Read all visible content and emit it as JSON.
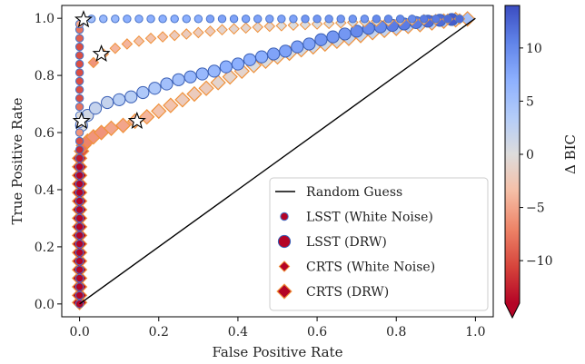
{
  "chart_data": {
    "type": "scatter",
    "title": "",
    "xlabel": "False Positive Rate",
    "ylabel": "True Positive Rate",
    "xlim": [
      -0.045,
      1.045
    ],
    "ylim": [
      -0.045,
      1.045
    ],
    "xticks": [
      0.0,
      0.2,
      0.4,
      0.6,
      0.8,
      1.0
    ],
    "yticks": [
      0.0,
      0.2,
      0.4,
      0.6,
      0.8,
      1.0
    ],
    "xtick_labels": [
      "0.0",
      "0.2",
      "0.4",
      "0.6",
      "0.8",
      "1.0"
    ],
    "ytick_labels": [
      "0.0",
      "0.2",
      "0.4",
      "0.6",
      "0.8",
      "1.0"
    ],
    "grid": false,
    "legend_position": "lower-right",
    "colorbar": {
      "label": "Δ BIC",
      "range": [
        -14,
        14
      ],
      "ticks": [
        -10,
        -5,
        0,
        5,
        10
      ],
      "tick_labels": [
        "−10",
        "−5",
        "0",
        "5",
        "10"
      ],
      "colormap": "coolwarm_r",
      "extend": "min"
    },
    "reference_line": {
      "name": "Random Guess",
      "x": [
        0,
        1
      ],
      "y": [
        0,
        1
      ]
    },
    "series": [
      {
        "name": "LSST (White Noise)",
        "marker": "circle-small",
        "edge_color": "#4a74c9",
        "points": [
          {
            "x": 0.0,
            "y": 0.0,
            "c": -14
          },
          {
            "x": 0.0,
            "y": 0.03,
            "c": -14
          },
          {
            "x": 0.0,
            "y": 0.06,
            "c": -14
          },
          {
            "x": 0.0,
            "y": 0.09,
            "c": -14
          },
          {
            "x": 0.0,
            "y": 0.12,
            "c": -14
          },
          {
            "x": 0.0,
            "y": 0.15,
            "c": -14
          },
          {
            "x": 0.0,
            "y": 0.18,
            "c": -14
          },
          {
            "x": 0.0,
            "y": 0.21,
            "c": -14
          },
          {
            "x": 0.0,
            "y": 0.24,
            "c": -14
          },
          {
            "x": 0.0,
            "y": 0.27,
            "c": -14
          },
          {
            "x": 0.0,
            "y": 0.3,
            "c": -14
          },
          {
            "x": 0.0,
            "y": 0.33,
            "c": -14
          },
          {
            "x": 0.0,
            "y": 0.36,
            "c": -14
          },
          {
            "x": 0.0,
            "y": 0.39,
            "c": -14
          },
          {
            "x": 0.0,
            "y": 0.42,
            "c": -14
          },
          {
            "x": 0.0,
            "y": 0.45,
            "c": -14
          },
          {
            "x": 0.0,
            "y": 0.48,
            "c": -14
          },
          {
            "x": 0.0,
            "y": 0.51,
            "c": -13
          },
          {
            "x": 0.0,
            "y": 0.54,
            "c": -12
          },
          {
            "x": 0.0,
            "y": 0.57,
            "c": -10
          },
          {
            "x": 0.0,
            "y": 0.6,
            "c": -6
          },
          {
            "x": 0.0,
            "y": 0.63,
            "c": -2
          },
          {
            "x": 0.0,
            "y": 0.66,
            "c": 0
          },
          {
            "x": 0.0,
            "y": 0.69,
            "c": -8
          },
          {
            "x": 0.0,
            "y": 0.72,
            "c": -10
          },
          {
            "x": 0.0,
            "y": 0.75,
            "c": -10
          },
          {
            "x": 0.0,
            "y": 0.78,
            "c": -10
          },
          {
            "x": 0.0,
            "y": 0.81,
            "c": -10
          },
          {
            "x": 0.0,
            "y": 0.84,
            "c": -10
          },
          {
            "x": 0.0,
            "y": 0.87,
            "c": -10
          },
          {
            "x": 0.0,
            "y": 0.9,
            "c": -10
          },
          {
            "x": 0.0,
            "y": 0.93,
            "c": -9
          },
          {
            "x": 0.0,
            "y": 0.96,
            "c": -8
          },
          {
            "x": 0.0,
            "y": 0.98,
            "c": -5
          },
          {
            "x": 0.03,
            "y": 0.998,
            "c": 5
          },
          {
            "x": 0.06,
            "y": 0.998,
            "c": 6
          },
          {
            "x": 0.09,
            "y": 0.998,
            "c": 6
          },
          {
            "x": 0.12,
            "y": 0.998,
            "c": 7
          },
          {
            "x": 0.15,
            "y": 0.998,
            "c": 7
          },
          {
            "x": 0.18,
            "y": 0.998,
            "c": 7
          },
          {
            "x": 0.21,
            "y": 0.998,
            "c": 7
          },
          {
            "x": 0.24,
            "y": 0.998,
            "c": 7
          },
          {
            "x": 0.27,
            "y": 0.998,
            "c": 7
          },
          {
            "x": 0.3,
            "y": 0.998,
            "c": 7
          },
          {
            "x": 0.33,
            "y": 0.998,
            "c": 8
          },
          {
            "x": 0.36,
            "y": 0.998,
            "c": 8
          },
          {
            "x": 0.39,
            "y": 0.998,
            "c": 8
          },
          {
            "x": 0.42,
            "y": 0.998,
            "c": 8
          },
          {
            "x": 0.45,
            "y": 0.998,
            "c": 8
          },
          {
            "x": 0.48,
            "y": 0.998,
            "c": 8
          },
          {
            "x": 0.51,
            "y": 0.998,
            "c": 8
          },
          {
            "x": 0.54,
            "y": 0.998,
            "c": 8
          },
          {
            "x": 0.57,
            "y": 0.998,
            "c": 9
          },
          {
            "x": 0.6,
            "y": 0.998,
            "c": 9
          },
          {
            "x": 0.63,
            "y": 0.998,
            "c": 9
          },
          {
            "x": 0.66,
            "y": 0.998,
            "c": 9
          },
          {
            "x": 0.69,
            "y": 0.998,
            "c": 9
          },
          {
            "x": 0.72,
            "y": 0.998,
            "c": 9
          },
          {
            "x": 0.75,
            "y": 0.998,
            "c": 10
          },
          {
            "x": 0.78,
            "y": 0.998,
            "c": 10
          },
          {
            "x": 0.81,
            "y": 0.998,
            "c": 10
          },
          {
            "x": 0.84,
            "y": 0.998,
            "c": 10
          },
          {
            "x": 0.87,
            "y": 0.998,
            "c": 11
          },
          {
            "x": 0.9,
            "y": 0.998,
            "c": 11
          },
          {
            "x": 0.93,
            "y": 0.998,
            "c": 12
          },
          {
            "x": 0.96,
            "y": 0.998,
            "c": 12
          }
        ]
      },
      {
        "name": "LSST (DRW)",
        "marker": "circle-large",
        "edge_color": "#3a5fb5",
        "points": [
          {
            "x": 0.005,
            "y": 0.625,
            "c": 0
          },
          {
            "x": 0.02,
            "y": 0.66,
            "c": 1
          },
          {
            "x": 0.04,
            "y": 0.685,
            "c": 2
          },
          {
            "x": 0.07,
            "y": 0.705,
            "c": 2
          },
          {
            "x": 0.1,
            "y": 0.715,
            "c": 3
          },
          {
            "x": 0.13,
            "y": 0.725,
            "c": 3
          },
          {
            "x": 0.16,
            "y": 0.74,
            "c": 4
          },
          {
            "x": 0.19,
            "y": 0.755,
            "c": 4
          },
          {
            "x": 0.22,
            "y": 0.77,
            "c": 5
          },
          {
            "x": 0.25,
            "y": 0.785,
            "c": 5
          },
          {
            "x": 0.28,
            "y": 0.795,
            "c": 6
          },
          {
            "x": 0.31,
            "y": 0.805,
            "c": 6
          },
          {
            "x": 0.34,
            "y": 0.815,
            "c": 6
          },
          {
            "x": 0.37,
            "y": 0.83,
            "c": 7
          },
          {
            "x": 0.4,
            "y": 0.84,
            "c": 7
          },
          {
            "x": 0.43,
            "y": 0.855,
            "c": 7
          },
          {
            "x": 0.46,
            "y": 0.865,
            "c": 7
          },
          {
            "x": 0.49,
            "y": 0.875,
            "c": 8
          },
          {
            "x": 0.52,
            "y": 0.885,
            "c": 8
          },
          {
            "x": 0.55,
            "y": 0.9,
            "c": 8
          },
          {
            "x": 0.58,
            "y": 0.91,
            "c": 8
          },
          {
            "x": 0.61,
            "y": 0.925,
            "c": 9
          },
          {
            "x": 0.64,
            "y": 0.935,
            "c": 9
          },
          {
            "x": 0.67,
            "y": 0.945,
            "c": 9
          },
          {
            "x": 0.7,
            "y": 0.955,
            "c": 10
          },
          {
            "x": 0.73,
            "y": 0.965,
            "c": 10
          },
          {
            "x": 0.76,
            "y": 0.97,
            "c": 10
          },
          {
            "x": 0.79,
            "y": 0.975,
            "c": 11
          },
          {
            "x": 0.82,
            "y": 0.98,
            "c": 11
          },
          {
            "x": 0.85,
            "y": 0.985,
            "c": 11
          },
          {
            "x": 0.88,
            "y": 0.99,
            "c": 12
          },
          {
            "x": 0.91,
            "y": 0.993,
            "c": 12
          },
          {
            "x": 0.94,
            "y": 0.996,
            "c": 13
          }
        ]
      },
      {
        "name": "CRTS (White Noise)",
        "marker": "diamond-small",
        "edge_color": "#f0913a",
        "points": [
          {
            "x": 0.035,
            "y": 0.845,
            "c": -6
          },
          {
            "x": 0.06,
            "y": 0.875,
            "c": -5
          },
          {
            "x": 0.09,
            "y": 0.895,
            "c": -4
          },
          {
            "x": 0.12,
            "y": 0.91,
            "c": -4
          },
          {
            "x": 0.15,
            "y": 0.92,
            "c": -3
          },
          {
            "x": 0.18,
            "y": 0.93,
            "c": -3
          },
          {
            "x": 0.21,
            "y": 0.935,
            "c": -3
          },
          {
            "x": 0.24,
            "y": 0.94,
            "c": -2
          },
          {
            "x": 0.27,
            "y": 0.945,
            "c": -2
          },
          {
            "x": 0.3,
            "y": 0.95,
            "c": -2
          },
          {
            "x": 0.33,
            "y": 0.955,
            "c": -2
          },
          {
            "x": 0.36,
            "y": 0.96,
            "c": -1
          },
          {
            "x": 0.39,
            "y": 0.963,
            "c": -1
          },
          {
            "x": 0.42,
            "y": 0.966,
            "c": -1
          },
          {
            "x": 0.45,
            "y": 0.969,
            "c": -1
          },
          {
            "x": 0.48,
            "y": 0.972,
            "c": -1
          },
          {
            "x": 0.51,
            "y": 0.974,
            "c": 0
          },
          {
            "x": 0.54,
            "y": 0.976,
            "c": 0
          },
          {
            "x": 0.57,
            "y": 0.978,
            "c": 0
          },
          {
            "x": 0.6,
            "y": 0.98,
            "c": 0
          },
          {
            "x": 0.63,
            "y": 0.982,
            "c": 0
          },
          {
            "x": 0.66,
            "y": 0.984,
            "c": 1
          },
          {
            "x": 0.69,
            "y": 0.986,
            "c": 1
          },
          {
            "x": 0.72,
            "y": 0.988,
            "c": 1
          },
          {
            "x": 0.75,
            "y": 0.99,
            "c": 1
          },
          {
            "x": 0.78,
            "y": 0.991,
            "c": 1
          },
          {
            "x": 0.81,
            "y": 0.992,
            "c": 2
          },
          {
            "x": 0.84,
            "y": 0.994,
            "c": 2
          },
          {
            "x": 0.87,
            "y": 0.995,
            "c": 2
          },
          {
            "x": 0.9,
            "y": 0.996,
            "c": 2
          },
          {
            "x": 0.93,
            "y": 0.997,
            "c": 3
          },
          {
            "x": 0.96,
            "y": 0.998,
            "c": 3
          }
        ]
      },
      {
        "name": "CRTS (DRW)",
        "marker": "diamond-large",
        "edge_color": "#f0913a",
        "points": [
          {
            "x": 0.0,
            "y": 0.005,
            "c": -14
          },
          {
            "x": 0.0,
            "y": 0.03,
            "c": -14
          },
          {
            "x": 0.0,
            "y": 0.06,
            "c": -14
          },
          {
            "x": 0.0,
            "y": 0.09,
            "c": -14
          },
          {
            "x": 0.0,
            "y": 0.12,
            "c": -14
          },
          {
            "x": 0.0,
            "y": 0.15,
            "c": -14
          },
          {
            "x": 0.0,
            "y": 0.18,
            "c": -14
          },
          {
            "x": 0.0,
            "y": 0.21,
            "c": -14
          },
          {
            "x": 0.0,
            "y": 0.24,
            "c": -14
          },
          {
            "x": 0.0,
            "y": 0.27,
            "c": -14
          },
          {
            "x": 0.0,
            "y": 0.3,
            "c": -14
          },
          {
            "x": 0.0,
            "y": 0.33,
            "c": -14
          },
          {
            "x": 0.0,
            "y": 0.36,
            "c": -14
          },
          {
            "x": 0.0,
            "y": 0.39,
            "c": -14
          },
          {
            "x": 0.0,
            "y": 0.42,
            "c": -14
          },
          {
            "x": 0.0,
            "y": 0.45,
            "c": -14
          },
          {
            "x": 0.0,
            "y": 0.48,
            "c": -13
          },
          {
            "x": 0.0,
            "y": 0.51,
            "c": -12
          },
          {
            "x": 0.005,
            "y": 0.535,
            "c": -10
          },
          {
            "x": 0.01,
            "y": 0.555,
            "c": -8
          },
          {
            "x": 0.02,
            "y": 0.57,
            "c": -7
          },
          {
            "x": 0.035,
            "y": 0.585,
            "c": -6
          },
          {
            "x": 0.055,
            "y": 0.6,
            "c": -6
          },
          {
            "x": 0.08,
            "y": 0.615,
            "c": -5
          },
          {
            "x": 0.11,
            "y": 0.625,
            "c": -5
          },
          {
            "x": 0.14,
            "y": 0.64,
            "c": -4
          },
          {
            "x": 0.17,
            "y": 0.655,
            "c": -4
          },
          {
            "x": 0.2,
            "y": 0.675,
            "c": -3
          },
          {
            "x": 0.23,
            "y": 0.695,
            "c": -3
          },
          {
            "x": 0.26,
            "y": 0.715,
            "c": -2
          },
          {
            "x": 0.29,
            "y": 0.735,
            "c": -2
          },
          {
            "x": 0.32,
            "y": 0.755,
            "c": -2
          },
          {
            "x": 0.35,
            "y": 0.775,
            "c": -1
          },
          {
            "x": 0.38,
            "y": 0.795,
            "c": -1
          },
          {
            "x": 0.41,
            "y": 0.815,
            "c": -1
          },
          {
            "x": 0.44,
            "y": 0.835,
            "c": 0
          },
          {
            "x": 0.47,
            "y": 0.85,
            "c": 0
          },
          {
            "x": 0.5,
            "y": 0.865,
            "c": 0
          },
          {
            "x": 0.53,
            "y": 0.878,
            "c": 0
          },
          {
            "x": 0.56,
            "y": 0.89,
            "c": 1
          },
          {
            "x": 0.59,
            "y": 0.9,
            "c": 1
          },
          {
            "x": 0.62,
            "y": 0.91,
            "c": 1
          },
          {
            "x": 0.65,
            "y": 0.92,
            "c": 1
          },
          {
            "x": 0.68,
            "y": 0.93,
            "c": 2
          },
          {
            "x": 0.71,
            "y": 0.94,
            "c": 2
          },
          {
            "x": 0.74,
            "y": 0.95,
            "c": 2
          },
          {
            "x": 0.77,
            "y": 0.958,
            "c": 2
          },
          {
            "x": 0.8,
            "y": 0.965,
            "c": 3
          },
          {
            "x": 0.83,
            "y": 0.972,
            "c": 3
          },
          {
            "x": 0.86,
            "y": 0.978,
            "c": 3
          },
          {
            "x": 0.89,
            "y": 0.984,
            "c": 3
          },
          {
            "x": 0.92,
            "y": 0.99,
            "c": 4
          },
          {
            "x": 0.95,
            "y": 0.995,
            "c": 4
          },
          {
            "x": 0.98,
            "y": 0.998,
            "c": 5
          }
        ]
      }
    ],
    "highlight_points": [
      {
        "x": 0.01,
        "y": 0.995
      },
      {
        "x": 0.055,
        "y": 0.875
      },
      {
        "x": 0.005,
        "y": 0.64
      },
      {
        "x": 0.145,
        "y": 0.64
      }
    ]
  }
}
